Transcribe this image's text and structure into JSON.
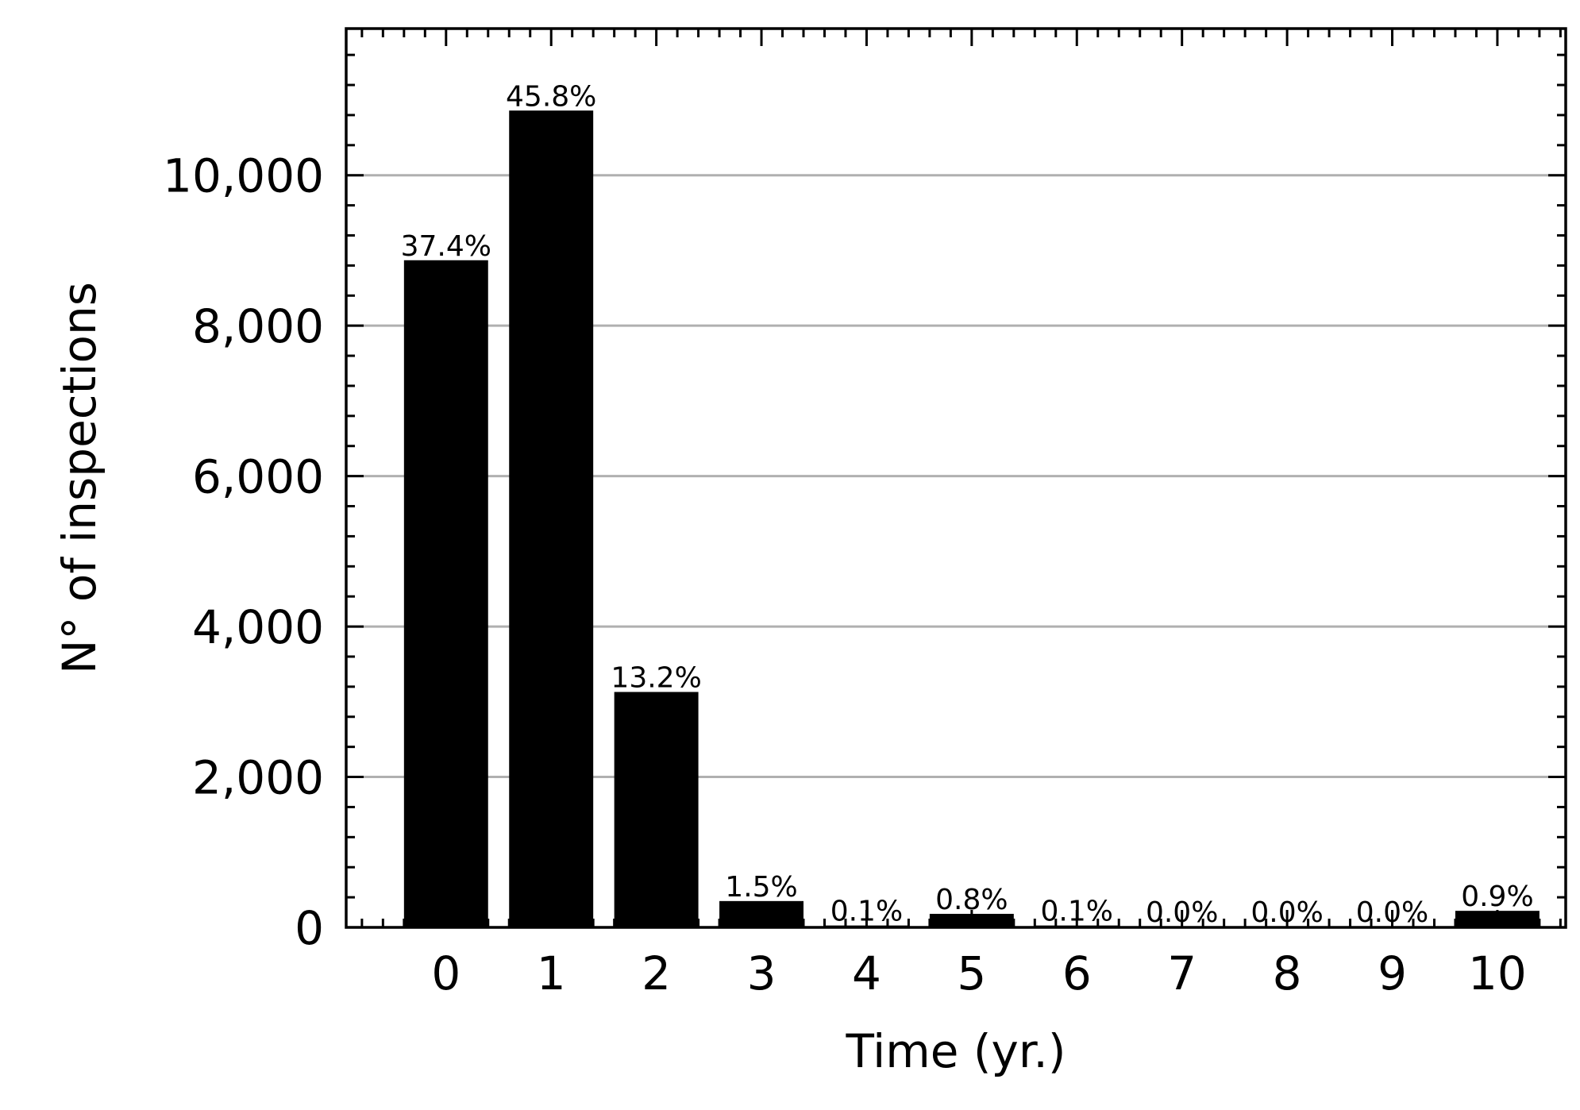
{
  "chart_data": {
    "type": "bar",
    "xlabel": "Time (yr.)",
    "ylabel": "N° of inspections",
    "categories": [
      "0",
      "1",
      "2",
      "3",
      "4",
      "5",
      "6",
      "7",
      "8",
      "9",
      "10"
    ],
    "values": [
      8870,
      10860,
      3130,
      350,
      25,
      180,
      25,
      8,
      8,
      8,
      220
    ],
    "bar_labels": [
      "37.4%",
      "45.8%",
      "13.2%",
      "1.5%",
      "0.1%",
      "0.8%",
      "0.1%",
      "0.0%",
      "0.0%",
      "0.0%",
      "0.9%"
    ],
    "ylim": [
      0,
      11950
    ],
    "yticks": [
      0,
      2000,
      4000,
      6000,
      8000,
      10000
    ],
    "ytick_labels": [
      "0",
      "2,000",
      "4,000",
      "6,000",
      "8,000",
      "10,000"
    ],
    "xlim": [
      -0.95,
      10.65
    ],
    "grid": "y-major",
    "colors": {
      "bar": "#000000",
      "grid": "#b0b0b0",
      "axis": "#000000"
    }
  }
}
